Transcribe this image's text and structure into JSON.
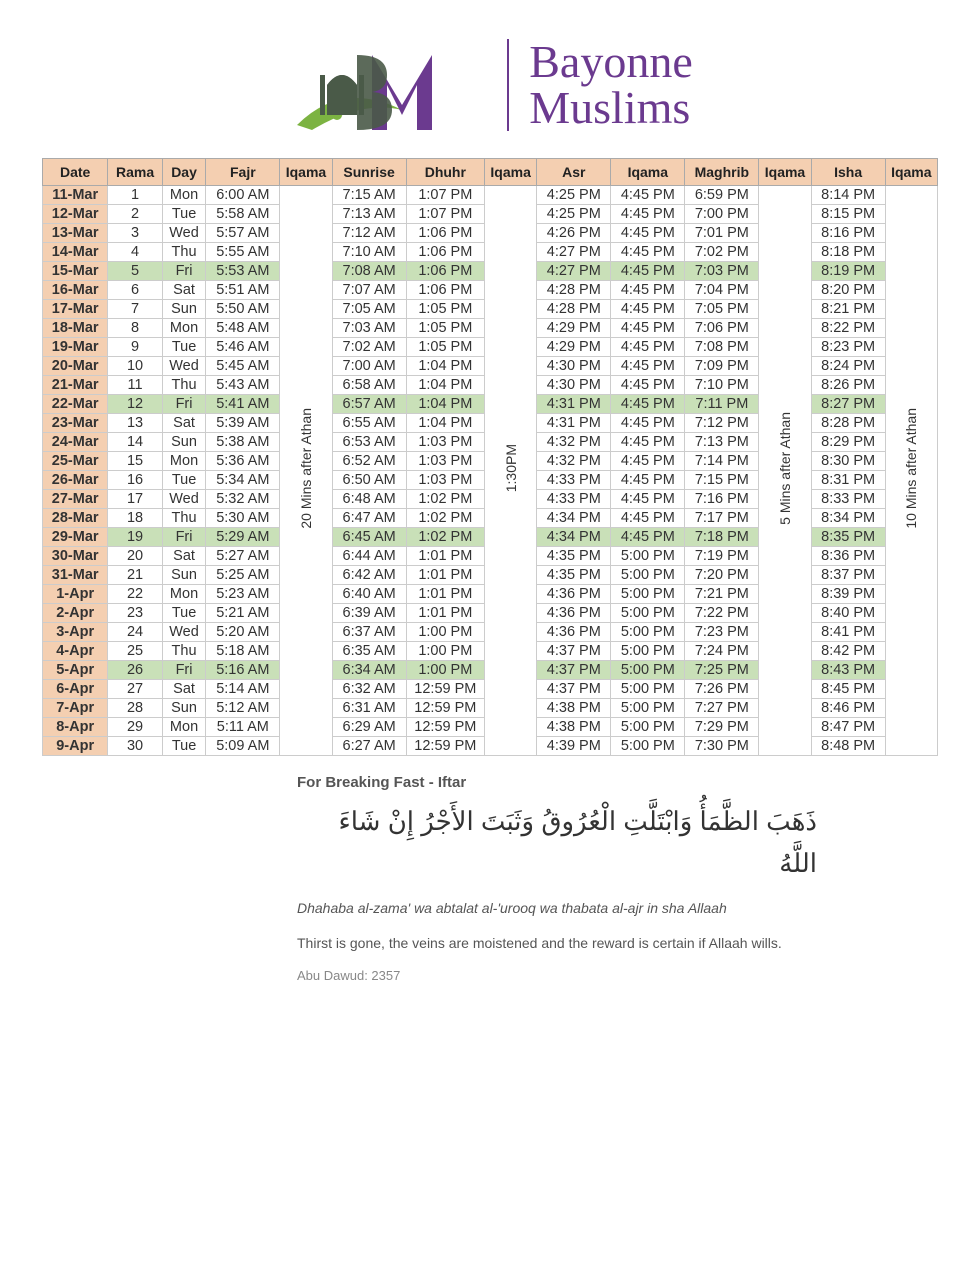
{
  "logo": {
    "line1": "Bayonne",
    "line2": "Muslims",
    "text_color": "#6b3a8f",
    "accent_green": "#7cb342",
    "accent_dark": "#4a5a48"
  },
  "table": {
    "header_bg": "#f4cfb1",
    "friday_bg": "#c9e0b8",
    "border_color": "#cccccc",
    "columns": [
      "Date",
      "Rama",
      "Day",
      "Fajr",
      "Iqama",
      "Sunrise",
      "Dhuhr",
      "Iqama",
      "Asr",
      "Iqama",
      "Maghrib",
      "Iqama",
      "Isha",
      "Iqama"
    ],
    "iqama_fajr": "20 Mins after Athan",
    "iqama_dhuhr": "1:30PM",
    "iqama_maghrib": "5 Mins after Athan",
    "iqama_isha": "10 Mins after Athan",
    "rows": [
      {
        "date": "11-Mar",
        "rama": "1",
        "day": "Mon",
        "fajr": "6:00 AM",
        "sunrise": "7:15 AM",
        "dhuhr": "1:07 PM",
        "asr": "4:25 PM",
        "asriq": "4:45 PM",
        "maghrib": "6:59 PM",
        "isha": "8:14 PM",
        "friday": false
      },
      {
        "date": "12-Mar",
        "rama": "2",
        "day": "Tue",
        "fajr": "5:58 AM",
        "sunrise": "7:13 AM",
        "dhuhr": "1:07 PM",
        "asr": "4:25 PM",
        "asriq": "4:45 PM",
        "maghrib": "7:00 PM",
        "isha": "8:15 PM",
        "friday": false
      },
      {
        "date": "13-Mar",
        "rama": "3",
        "day": "Wed",
        "fajr": "5:57 AM",
        "sunrise": "7:12 AM",
        "dhuhr": "1:06 PM",
        "asr": "4:26 PM",
        "asriq": "4:45 PM",
        "maghrib": "7:01 PM",
        "isha": "8:16 PM",
        "friday": false
      },
      {
        "date": "14-Mar",
        "rama": "4",
        "day": "Thu",
        "fajr": "5:55 AM",
        "sunrise": "7:10 AM",
        "dhuhr": "1:06 PM",
        "asr": "4:27 PM",
        "asriq": "4:45 PM",
        "maghrib": "7:02 PM",
        "isha": "8:18 PM",
        "friday": false
      },
      {
        "date": "15-Mar",
        "rama": "5",
        "day": "Fri",
        "fajr": "5:53 AM",
        "sunrise": "7:08 AM",
        "dhuhr": "1:06 PM",
        "asr": "4:27 PM",
        "asriq": "4:45 PM",
        "maghrib": "7:03 PM",
        "isha": "8:19 PM",
        "friday": true
      },
      {
        "date": "16-Mar",
        "rama": "6",
        "day": "Sat",
        "fajr": "5:51 AM",
        "sunrise": "7:07 AM",
        "dhuhr": "1:06 PM",
        "asr": "4:28 PM",
        "asriq": "4:45 PM",
        "maghrib": "7:04 PM",
        "isha": "8:20 PM",
        "friday": false
      },
      {
        "date": "17-Mar",
        "rama": "7",
        "day": "Sun",
        "fajr": "5:50 AM",
        "sunrise": "7:05 AM",
        "dhuhr": "1:05 PM",
        "asr": "4:28 PM",
        "asriq": "4:45 PM",
        "maghrib": "7:05 PM",
        "isha": "8:21 PM",
        "friday": false
      },
      {
        "date": "18-Mar",
        "rama": "8",
        "day": "Mon",
        "fajr": "5:48 AM",
        "sunrise": "7:03 AM",
        "dhuhr": "1:05 PM",
        "asr": "4:29 PM",
        "asriq": "4:45 PM",
        "maghrib": "7:06 PM",
        "isha": "8:22 PM",
        "friday": false
      },
      {
        "date": "19-Mar",
        "rama": "9",
        "day": "Tue",
        "fajr": "5:46 AM",
        "sunrise": "7:02 AM",
        "dhuhr": "1:05 PM",
        "asr": "4:29 PM",
        "asriq": "4:45 PM",
        "maghrib": "7:08 PM",
        "isha": "8:23 PM",
        "friday": false
      },
      {
        "date": "20-Mar",
        "rama": "10",
        "day": "Wed",
        "fajr": "5:45 AM",
        "sunrise": "7:00 AM",
        "dhuhr": "1:04 PM",
        "asr": "4:30 PM",
        "asriq": "4:45 PM",
        "maghrib": "7:09 PM",
        "isha": "8:24 PM",
        "friday": false
      },
      {
        "date": "21-Mar",
        "rama": "11",
        "day": "Thu",
        "fajr": "5:43 AM",
        "sunrise": "6:58 AM",
        "dhuhr": "1:04 PM",
        "asr": "4:30 PM",
        "asriq": "4:45 PM",
        "maghrib": "7:10 PM",
        "isha": "8:26 PM",
        "friday": false
      },
      {
        "date": "22-Mar",
        "rama": "12",
        "day": "Fri",
        "fajr": "5:41 AM",
        "sunrise": "6:57 AM",
        "dhuhr": "1:04 PM",
        "asr": "4:31 PM",
        "asriq": "4:45 PM",
        "maghrib": "7:11 PM",
        "isha": "8:27 PM",
        "friday": true
      },
      {
        "date": "23-Mar",
        "rama": "13",
        "day": "Sat",
        "fajr": "5:39 AM",
        "sunrise": "6:55 AM",
        "dhuhr": "1:04 PM",
        "asr": "4:31 PM",
        "asriq": "4:45 PM",
        "maghrib": "7:12 PM",
        "isha": "8:28 PM",
        "friday": false
      },
      {
        "date": "24-Mar",
        "rama": "14",
        "day": "Sun",
        "fajr": "5:38 AM",
        "sunrise": "6:53 AM",
        "dhuhr": "1:03 PM",
        "asr": "4:32 PM",
        "asriq": "4:45 PM",
        "maghrib": "7:13 PM",
        "isha": "8:29 PM",
        "friday": false
      },
      {
        "date": "25-Mar",
        "rama": "15",
        "day": "Mon",
        "fajr": "5:36 AM",
        "sunrise": "6:52 AM",
        "dhuhr": "1:03 PM",
        "asr": "4:32 PM",
        "asriq": "4:45 PM",
        "maghrib": "7:14 PM",
        "isha": "8:30 PM",
        "friday": false
      },
      {
        "date": "26-Mar",
        "rama": "16",
        "day": "Tue",
        "fajr": "5:34 AM",
        "sunrise": "6:50 AM",
        "dhuhr": "1:03 PM",
        "asr": "4:33 PM",
        "asriq": "4:45 PM",
        "maghrib": "7:15 PM",
        "isha": "8:31 PM",
        "friday": false
      },
      {
        "date": "27-Mar",
        "rama": "17",
        "day": "Wed",
        "fajr": "5:32 AM",
        "sunrise": "6:48 AM",
        "dhuhr": "1:02 PM",
        "asr": "4:33 PM",
        "asriq": "4:45 PM",
        "maghrib": "7:16 PM",
        "isha": "8:33 PM",
        "friday": false
      },
      {
        "date": "28-Mar",
        "rama": "18",
        "day": "Thu",
        "fajr": "5:30 AM",
        "sunrise": "6:47 AM",
        "dhuhr": "1:02 PM",
        "asr": "4:34 PM",
        "asriq": "4:45 PM",
        "maghrib": "7:17 PM",
        "isha": "8:34 PM",
        "friday": false
      },
      {
        "date": "29-Mar",
        "rama": "19",
        "day": "Fri",
        "fajr": "5:29 AM",
        "sunrise": "6:45 AM",
        "dhuhr": "1:02 PM",
        "asr": "4:34 PM",
        "asriq": "4:45 PM",
        "maghrib": "7:18 PM",
        "isha": "8:35 PM",
        "friday": true
      },
      {
        "date": "30-Mar",
        "rama": "20",
        "day": "Sat",
        "fajr": "5:27 AM",
        "sunrise": "6:44 AM",
        "dhuhr": "1:01 PM",
        "asr": "4:35 PM",
        "asriq": "5:00 PM",
        "maghrib": "7:19 PM",
        "isha": "8:36 PM",
        "friday": false
      },
      {
        "date": "31-Mar",
        "rama": "21",
        "day": "Sun",
        "fajr": "5:25 AM",
        "sunrise": "6:42 AM",
        "dhuhr": "1:01 PM",
        "asr": "4:35 PM",
        "asriq": "5:00 PM",
        "maghrib": "7:20 PM",
        "isha": "8:37 PM",
        "friday": false
      },
      {
        "date": "1-Apr",
        "rama": "22",
        "day": "Mon",
        "fajr": "5:23 AM",
        "sunrise": "6:40 AM",
        "dhuhr": "1:01 PM",
        "asr": "4:36 PM",
        "asriq": "5:00 PM",
        "maghrib": "7:21 PM",
        "isha": "8:39 PM",
        "friday": false
      },
      {
        "date": "2-Apr",
        "rama": "23",
        "day": "Tue",
        "fajr": "5:21 AM",
        "sunrise": "6:39 AM",
        "dhuhr": "1:01 PM",
        "asr": "4:36 PM",
        "asriq": "5:00 PM",
        "maghrib": "7:22 PM",
        "isha": "8:40 PM",
        "friday": false
      },
      {
        "date": "3-Apr",
        "rama": "24",
        "day": "Wed",
        "fajr": "5:20 AM",
        "sunrise": "6:37 AM",
        "dhuhr": "1:00 PM",
        "asr": "4:36 PM",
        "asriq": "5:00 PM",
        "maghrib": "7:23 PM",
        "isha": "8:41 PM",
        "friday": false
      },
      {
        "date": "4-Apr",
        "rama": "25",
        "day": "Thu",
        "fajr": "5:18 AM",
        "sunrise": "6:35 AM",
        "dhuhr": "1:00 PM",
        "asr": "4:37 PM",
        "asriq": "5:00 PM",
        "maghrib": "7:24 PM",
        "isha": "8:42 PM",
        "friday": false
      },
      {
        "date": "5-Apr",
        "rama": "26",
        "day": "Fri",
        "fajr": "5:16 AM",
        "sunrise": "6:34 AM",
        "dhuhr": "1:00 PM",
        "asr": "4:37 PM",
        "asriq": "5:00 PM",
        "maghrib": "7:25 PM",
        "isha": "8:43 PM",
        "friday": true
      },
      {
        "date": "6-Apr",
        "rama": "27",
        "day": "Sat",
        "fajr": "5:14 AM",
        "sunrise": "6:32 AM",
        "dhuhr": "12:59 PM",
        "asr": "4:37 PM",
        "asriq": "5:00 PM",
        "maghrib": "7:26 PM",
        "isha": "8:45 PM",
        "friday": false
      },
      {
        "date": "7-Apr",
        "rama": "28",
        "day": "Sun",
        "fajr": "5:12 AM",
        "sunrise": "6:31 AM",
        "dhuhr": "12:59 PM",
        "asr": "4:38 PM",
        "asriq": "5:00 PM",
        "maghrib": "7:27 PM",
        "isha": "8:46 PM",
        "friday": false
      },
      {
        "date": "8-Apr",
        "rama": "29",
        "day": "Mon",
        "fajr": "5:11 AM",
        "sunrise": "6:29 AM",
        "dhuhr": "12:59 PM",
        "asr": "4:38 PM",
        "asriq": "5:00 PM",
        "maghrib": "7:29 PM",
        "isha": "8:47 PM",
        "friday": false
      },
      {
        "date": "9-Apr",
        "rama": "30",
        "day": "Tue",
        "fajr": "5:09 AM",
        "sunrise": "6:27 AM",
        "dhuhr": "12:59 PM",
        "asr": "4:39 PM",
        "asriq": "5:00 PM",
        "maghrib": "7:30 PM",
        "isha": "8:48 PM",
        "friday": false
      }
    ]
  },
  "dua": {
    "heading": "For Breaking Fast - Iftar",
    "arabic": "ذَهَبَ الظَّمَأُ وَابْتَلَّتِ الْعُرُوقُ وَثَبَتَ الأَجْرُ إِنْ شَاءَ اللَّهُ",
    "translit": "Dhahaba al-zama' wa abtalat al-'urooq wa thabata al-ajr in sha Allaah",
    "english": "Thirst is gone, the veins are moistened and the reward is certain if Allaah wills.",
    "source": "Abu Dawud: 2357"
  }
}
